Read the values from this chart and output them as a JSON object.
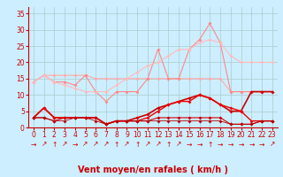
{
  "title": "",
  "xlabel": "Vent moyen/en rafales ( km/h )",
  "bg_color": "#cceeff",
  "grid_color": "#aacccc",
  "xlim": [
    -0.5,
    23.5
  ],
  "ylim": [
    0,
    37
  ],
  "yticks": [
    0,
    5,
    10,
    15,
    20,
    25,
    30,
    35
  ],
  "xticks": [
    0,
    1,
    2,
    3,
    4,
    5,
    6,
    7,
    8,
    9,
    10,
    11,
    12,
    13,
    14,
    15,
    16,
    17,
    18,
    19,
    20,
    21,
    22,
    23
  ],
  "lines": [
    {
      "x": [
        0,
        1,
        2,
        3,
        4,
        5,
        6,
        7,
        8,
        9,
        10,
        11,
        12,
        13,
        14,
        15,
        16,
        17,
        18,
        19,
        20,
        21,
        22,
        23
      ],
      "y": [
        14,
        16,
        16,
        16,
        16,
        16,
        15,
        15,
        15,
        15,
        15,
        15,
        15,
        15,
        15,
        15,
        15,
        15,
        15,
        11,
        11,
        11,
        11,
        11
      ],
      "color": "#ffaaaa",
      "marker": "D",
      "markersize": 2,
      "linewidth": 0.8
    },
    {
      "x": [
        0,
        1,
        2,
        3,
        4,
        5,
        6,
        7,
        8,
        9,
        10,
        11,
        12,
        13,
        14,
        15,
        16,
        17,
        18,
        19,
        20,
        21,
        22,
        23
      ],
      "y": [
        14,
        16,
        14,
        14,
        13,
        16,
        11,
        8,
        11,
        11,
        11,
        15,
        24,
        15,
        15,
        24,
        27,
        32,
        26,
        11,
        11,
        11,
        11,
        11
      ],
      "color": "#ff8888",
      "marker": "D",
      "markersize": 2,
      "linewidth": 0.8
    },
    {
      "x": [
        0,
        1,
        2,
        3,
        4,
        5,
        6,
        7,
        8,
        9,
        10,
        11,
        12,
        13,
        14,
        15,
        16,
        17,
        18,
        19,
        20,
        21,
        22,
        23
      ],
      "y": [
        14,
        16,
        14,
        13,
        12,
        11,
        11,
        11,
        13,
        15,
        17,
        19,
        20,
        22,
        24,
        24,
        26,
        27,
        26,
        22,
        20,
        20,
        20,
        20
      ],
      "color": "#ffbbbb",
      "marker": "D",
      "markersize": 2,
      "linewidth": 0.8
    },
    {
      "x": [
        0,
        1,
        2,
        3,
        4,
        5,
        6,
        7,
        8,
        9,
        10,
        11,
        12,
        13,
        14,
        15,
        16,
        17,
        18,
        19,
        20,
        21,
        22,
        23
      ],
      "y": [
        3,
        6,
        3,
        3,
        3,
        3,
        3,
        1,
        2,
        2,
        3,
        4,
        6,
        7,
        8,
        9,
        10,
        9,
        7,
        5,
        5,
        11,
        11,
        11
      ],
      "color": "#cc0000",
      "marker": "D",
      "markersize": 2,
      "linewidth": 1.2
    },
    {
      "x": [
        0,
        1,
        2,
        3,
        4,
        5,
        6,
        7,
        8,
        9,
        10,
        11,
        12,
        13,
        14,
        15,
        16,
        17,
        18,
        19,
        20,
        21,
        22,
        23
      ],
      "y": [
        3,
        6,
        3,
        3,
        3,
        3,
        3,
        1,
        2,
        2,
        2,
        3,
        5,
        7,
        8,
        8,
        10,
        9,
        7,
        6,
        5,
        2,
        2,
        2
      ],
      "color": "#ee0000",
      "marker": "D",
      "markersize": 2,
      "linewidth": 1.0
    },
    {
      "x": [
        0,
        1,
        2,
        3,
        4,
        5,
        6,
        7,
        8,
        9,
        10,
        11,
        12,
        13,
        14,
        15,
        16,
        17,
        18,
        19,
        20,
        21,
        22,
        23
      ],
      "y": [
        3,
        3,
        2,
        3,
        3,
        3,
        3,
        1,
        2,
        2,
        2,
        2,
        3,
        3,
        3,
        3,
        3,
        3,
        3,
        1,
        1,
        1,
        2,
        2
      ],
      "color": "#cc0000",
      "marker": "D",
      "markersize": 2,
      "linewidth": 0.8
    },
    {
      "x": [
        0,
        1,
        2,
        3,
        4,
        5,
        6,
        7,
        8,
        9,
        10,
        11,
        12,
        13,
        14,
        15,
        16,
        17,
        18,
        19,
        20,
        21,
        22,
        23
      ],
      "y": [
        3,
        3,
        2,
        2,
        3,
        3,
        2,
        1,
        2,
        2,
        2,
        2,
        2,
        2,
        2,
        2,
        2,
        2,
        2,
        1,
        1,
        1,
        2,
        2
      ],
      "color": "#bb0000",
      "marker": "D",
      "markersize": 2,
      "linewidth": 0.6
    }
  ],
  "arrows": [
    "→",
    "↗",
    "↑",
    "↗",
    "→",
    "↗",
    "↗",
    "↗",
    "↑",
    "↗",
    "↑",
    "↗",
    "↗",
    "↑",
    "↗",
    "→",
    "→",
    "↑",
    "→",
    "→",
    "→",
    "→",
    "→",
    "↗"
  ],
  "tick_color": "#cc0000",
  "tick_fontsize": 5.5,
  "xlabel_fontsize": 7
}
